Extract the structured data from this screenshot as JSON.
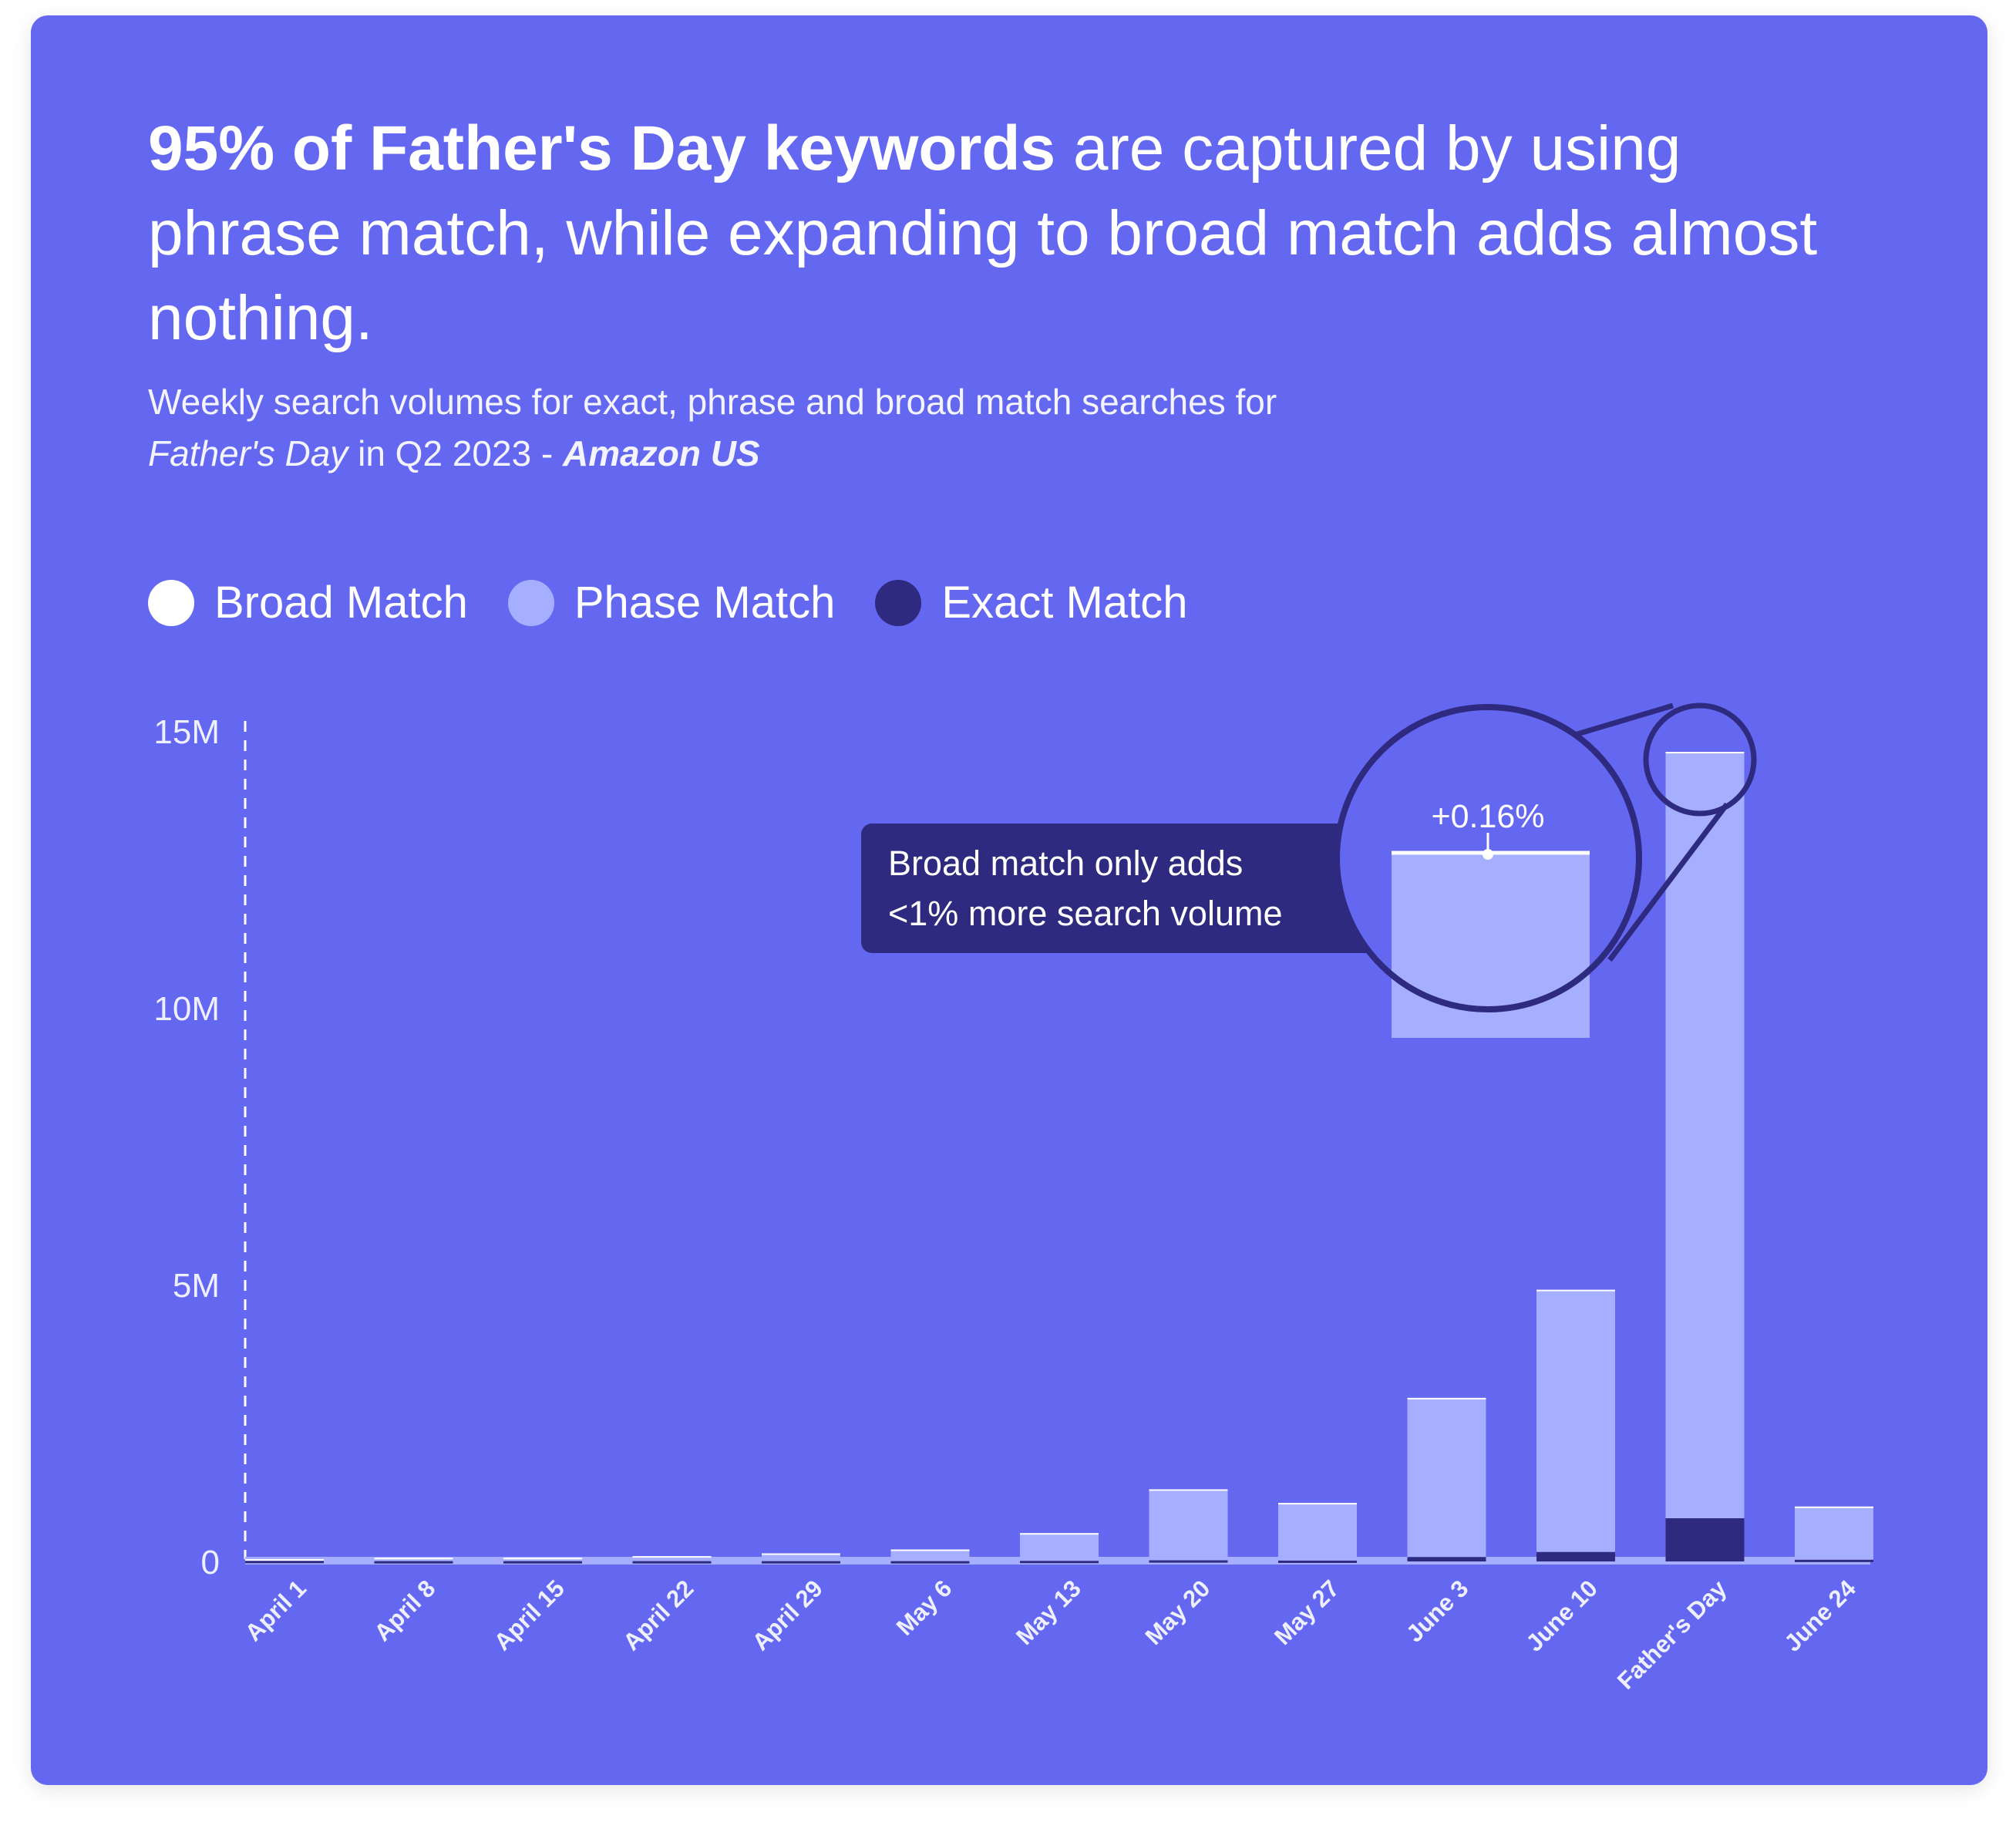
{
  "title": {
    "bold": "95% of Father's Day keywords",
    "rest": " are captured by using phrase match, while expanding to broad match adds almost nothing."
  },
  "subtitle": {
    "line1": "Weekly search volumes for exact, phrase and broad match searches for",
    "italic": "Father's Day",
    "middle": " in Q2 2023 - ",
    "bold_italic": "Amazon US"
  },
  "legend": [
    {
      "label": "Broad Match",
      "color": "#ffffff"
    },
    {
      "label": "Phase Match",
      "color": "#a6afff"
    },
    {
      "label": "Exact Match",
      "color": "#2e2a7f"
    }
  ],
  "annotation": {
    "line1": "Broad match only adds",
    "line2": "<1% more search volume",
    "zoom_label": "+0.16%"
  },
  "colors": {
    "background": "#6467ef",
    "broad": "#ffffff",
    "phrase": "#a6afff",
    "exact": "#2e2a7f",
    "callout": "#2e2a7f",
    "axis_text": "#eef0ff"
  },
  "chart_data": {
    "type": "bar",
    "stacked": true,
    "categories": [
      "April 1",
      "April 8",
      "April 15",
      "April 22",
      "April 29",
      "May 6",
      "May 13",
      "May 20",
      "May 27",
      "June 3",
      "June 10",
      "Father's Day",
      "June 24"
    ],
    "series": [
      {
        "name": "Exact Match",
        "values": [
          10000,
          5000,
          5000,
          5000,
          5000,
          5000,
          10000,
          20000,
          15000,
          80000,
          170000,
          780000,
          30000
        ]
      },
      {
        "name": "Phase Match",
        "values": [
          30000,
          60000,
          60000,
          90000,
          140000,
          210000,
          500000,
          1280000,
          1040000,
          2870000,
          4730000,
          13820000,
          960000
        ]
      },
      {
        "name": "Broad Match",
        "values": [
          1000,
          1000,
          1000,
          1000,
          1000,
          1000,
          2000,
          3000,
          2000,
          5000,
          8000,
          23000,
          2000
        ]
      }
    ],
    "ylim": [
      0,
      15000000
    ],
    "yticks": [
      0,
      5000000,
      10000000,
      15000000
    ],
    "ytick_labels": [
      "0",
      "5M",
      "10M",
      "15M"
    ],
    "xlabel": "",
    "ylabel": "",
    "grid": false,
    "legend_position": "top-left"
  }
}
